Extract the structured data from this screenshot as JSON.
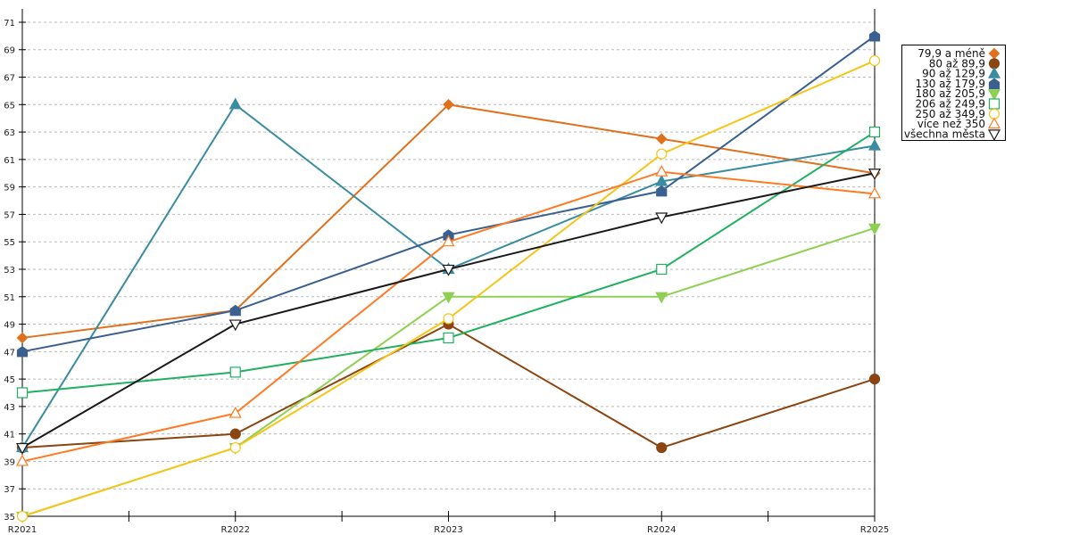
{
  "chart_data": {
    "type": "line",
    "title": "",
    "xlabel": "",
    "ylabel": "",
    "categories": [
      "R2021",
      "R2022",
      "R2023",
      "R2024",
      "R2025"
    ],
    "ylim": [
      35,
      72
    ],
    "yticks": [
      35,
      37,
      39,
      41,
      43,
      45,
      47,
      49,
      51,
      53,
      55,
      57,
      59,
      61,
      63,
      65,
      67,
      69,
      71
    ],
    "grid": "horizontal-dashed",
    "legend_position": "right",
    "series": [
      {
        "name": "79,9 a méně",
        "color": "#e0701c",
        "marker": "diamond",
        "values": [
          48,
          50,
          65,
          62.5,
          60
        ]
      },
      {
        "name": "80 až 89,9",
        "color": "#8b4510",
        "marker": "circle-filled",
        "values": [
          40,
          41,
          49,
          40,
          45
        ]
      },
      {
        "name": "90 až 129,9",
        "color": "#3a8ca0",
        "marker": "triangle-up-filled",
        "values": [
          40,
          65,
          53,
          59.4,
          62
        ]
      },
      {
        "name": "130 až 179,9",
        "color": "#3a6090",
        "marker": "pentagon-filled",
        "values": [
          47,
          50,
          55.5,
          58.7,
          70
        ]
      },
      {
        "name": "180 až 205,9",
        "color": "#8fd052",
        "marker": "triangle-down-filled",
        "values": [
          35,
          40,
          51,
          51,
          56
        ]
      },
      {
        "name": "206 až 249,9",
        "color": "#20b060",
        "marker": "square-open",
        "values": [
          44,
          45.5,
          48,
          53,
          63
        ]
      },
      {
        "name": "250 až 349,9",
        "color": "#f5c518",
        "marker": "circle-open",
        "values": [
          35,
          40,
          49.4,
          61.4,
          68.2
        ]
      },
      {
        "name": "více než 350",
        "color": "#ff7a22",
        "marker": "triangle-up-open",
        "values": [
          39,
          42.5,
          55,
          60.1,
          58.5
        ]
      },
      {
        "name": "všechna města",
        "color": "#1a1a1a",
        "marker": "triangle-down-open",
        "values": [
          40,
          49,
          53,
          56.8,
          60
        ]
      }
    ]
  }
}
